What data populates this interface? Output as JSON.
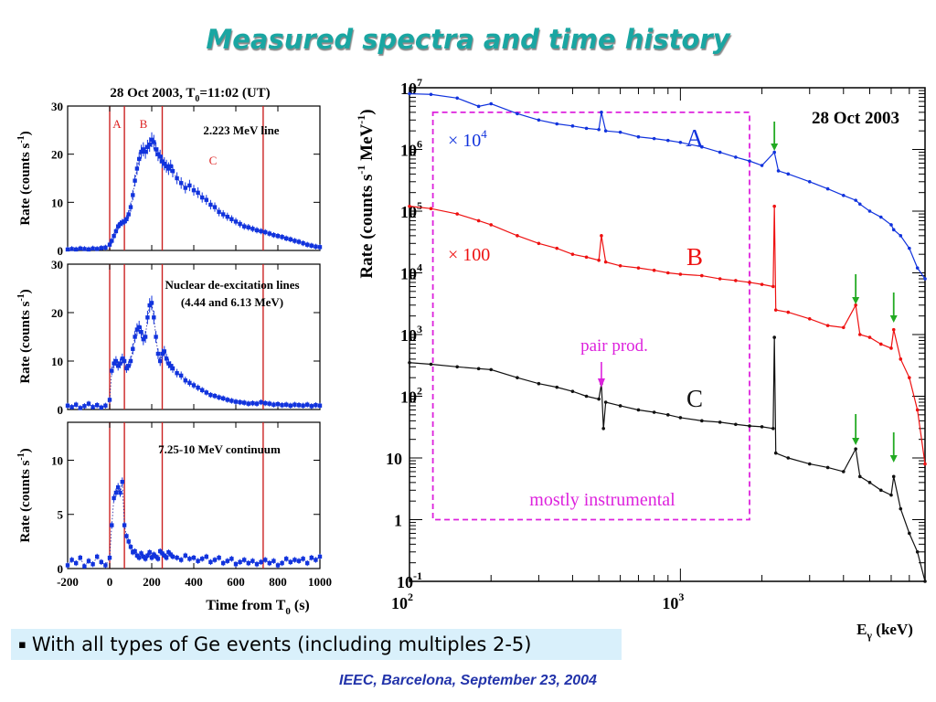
{
  "slide": {
    "title": "Measured spectra and time history",
    "bullet_marker": "▪",
    "bullet": "With all types of Ge events (including multiples 2-5)",
    "footer": "IEEC, Barcelona, September 23, 2004"
  },
  "colors": {
    "title": "#1aa6a2",
    "footer": "#2233aa",
    "bullet_bg": "#d9f0fb",
    "marker_line": "#cc2222",
    "pink": "#dd22dd",
    "arrow": "#22aa22",
    "series_a": "#1133dd",
    "series_b": "#ee1111",
    "series_c": "#111111"
  },
  "left_panels": {
    "header": "28 Oct 2003,  T",
    "header_sub": "0",
    "header_tail": "=11:02 (UT)",
    "xlabel": "Time from T",
    "xlabel_sub": "0",
    "xlabel_tail": " (s)",
    "ylabel": "Rate (counts s",
    "ylabel_sup": "-1",
    "ylabel_tail": ")",
    "xticks": [
      "-200",
      "0",
      "200",
      "400",
      "600",
      "800",
      "1000"
    ],
    "marker_times": [
      0,
      70,
      250,
      730
    ],
    "marker_labels": [
      "A",
      "B",
      "C"
    ]
  },
  "chart_data": [
    {
      "type": "scatter",
      "title": "2.223 MeV line",
      "xlim": [
        -200,
        1000
      ],
      "ylim": [
        0,
        30
      ],
      "yticks": [
        "0",
        "10",
        "20",
        "30"
      ],
      "x": [
        -200,
        -180,
        -160,
        -140,
        -120,
        -100,
        -80,
        -60,
        -40,
        -20,
        0,
        10,
        20,
        30,
        40,
        50,
        60,
        70,
        80,
        90,
        100,
        110,
        120,
        130,
        140,
        150,
        160,
        170,
        180,
        190,
        200,
        210,
        220,
        230,
        240,
        250,
        260,
        270,
        280,
        290,
        300,
        320,
        340,
        360,
        380,
        400,
        420,
        440,
        460,
        480,
        500,
        520,
        540,
        560,
        580,
        600,
        620,
        640,
        660,
        680,
        700,
        720,
        740,
        760,
        780,
        800,
        820,
        840,
        860,
        880,
        900,
        920,
        940,
        960,
        980,
        1000
      ],
      "y": [
        0.2,
        0.3,
        0.2,
        0.4,
        0.3,
        0.2,
        0.4,
        0.3,
        0.5,
        0.6,
        1.2,
        2.0,
        3.0,
        4.0,
        5.0,
        5.5,
        5.8,
        6.0,
        6.5,
        7.5,
        9.0,
        11.5,
        14.5,
        17.0,
        19.0,
        20.5,
        21.0,
        20.5,
        21.5,
        22.0,
        23.0,
        22.5,
        21.0,
        20.0,
        19.5,
        18.5,
        18.0,
        17.5,
        17.0,
        17.5,
        16.5,
        15.0,
        14.0,
        13.0,
        13.5,
        12.5,
        12.0,
        11.0,
        10.5,
        9.5,
        9.0,
        8.0,
        7.5,
        7.0,
        6.5,
        6.0,
        5.5,
        5.0,
        4.8,
        4.5,
        4.2,
        4.0,
        3.8,
        3.5,
        3.2,
        3.0,
        2.8,
        2.5,
        2.3,
        2.0,
        1.8,
        1.5,
        1.2,
        1.0,
        0.8,
        0.7
      ]
    },
    {
      "type": "scatter",
      "title": "Nuclear de-excitation lines",
      "subtitle": "(4.44 and 6.13 MeV)",
      "xlim": [
        -200,
        1000
      ],
      "ylim": [
        0,
        30
      ],
      "yticks": [
        "0",
        "10",
        "20",
        "30"
      ],
      "x": [
        -200,
        -180,
        -160,
        -140,
        -120,
        -100,
        -80,
        -60,
        -40,
        -20,
        0,
        10,
        20,
        30,
        40,
        50,
        60,
        70,
        80,
        90,
        100,
        110,
        120,
        130,
        140,
        150,
        160,
        170,
        180,
        190,
        200,
        210,
        220,
        230,
        240,
        250,
        260,
        270,
        280,
        290,
        300,
        320,
        340,
        360,
        380,
        400,
        420,
        440,
        460,
        480,
        500,
        520,
        540,
        560,
        580,
        600,
        620,
        640,
        660,
        680,
        700,
        720,
        740,
        760,
        780,
        800,
        820,
        840,
        860,
        880,
        900,
        920,
        940,
        960,
        980,
        1000
      ],
      "y": [
        0.8,
        0.5,
        1.0,
        0.3,
        0.7,
        1.2,
        0.5,
        0.9,
        0.4,
        0.8,
        2.0,
        8.0,
        9.5,
        10.0,
        9.0,
        9.5,
        10.5,
        10.0,
        8.5,
        9.0,
        10.0,
        12.5,
        15.0,
        16.5,
        17.0,
        16.0,
        14.5,
        15.0,
        19.0,
        21.5,
        22.0,
        19.0,
        15.0,
        11.5,
        10.0,
        11.5,
        12.0,
        10.5,
        9.5,
        9.0,
        8.5,
        7.5,
        7.0,
        6.0,
        5.5,
        5.0,
        4.5,
        4.0,
        3.5,
        3.0,
        2.8,
        2.5,
        2.3,
        2.0,
        1.8,
        1.6,
        1.5,
        1.4,
        1.2,
        1.3,
        1.2,
        1.5,
        1.3,
        1.2,
        1.0,
        1.1,
        0.9,
        1.0,
        0.8,
        1.0,
        0.9,
        0.8,
        1.0,
        0.7,
        0.9,
        0.8
      ]
    },
    {
      "type": "scatter",
      "title": "7.25-10 MeV continuum",
      "xlim": [
        -200,
        1000
      ],
      "ylim": [
        0,
        13.5
      ],
      "yticks": [
        "0",
        "5",
        "10"
      ],
      "x": [
        -200,
        -180,
        -160,
        -140,
        -120,
        -100,
        -80,
        -60,
        -40,
        -20,
        0,
        10,
        20,
        30,
        40,
        50,
        60,
        70,
        80,
        90,
        100,
        110,
        120,
        130,
        140,
        150,
        160,
        170,
        180,
        190,
        200,
        210,
        220,
        230,
        240,
        250,
        260,
        270,
        280,
        290,
        300,
        320,
        340,
        360,
        380,
        400,
        420,
        440,
        460,
        480,
        500,
        520,
        540,
        560,
        580,
        600,
        620,
        640,
        660,
        680,
        700,
        720,
        740,
        760,
        780,
        800,
        820,
        840,
        860,
        880,
        900,
        920,
        940,
        960,
        980,
        1000
      ],
      "y": [
        0.3,
        0.8,
        0.5,
        1.0,
        0.2,
        0.7,
        0.4,
        1.1,
        0.6,
        0.3,
        1.0,
        4.0,
        6.5,
        7.0,
        7.5,
        7.0,
        8.0,
        4.0,
        3.0,
        2.5,
        2.0,
        1.5,
        1.6,
        1.2,
        1.0,
        1.4,
        1.1,
        0.9,
        1.2,
        1.5,
        1.0,
        1.3,
        1.1,
        0.9,
        1.6,
        1.4,
        1.2,
        1.0,
        1.5,
        1.3,
        1.1,
        1.0,
        0.8,
        1.2,
        0.9,
        1.0,
        0.7,
        0.9,
        1.1,
        0.6,
        0.8,
        1.0,
        0.5,
        0.7,
        0.9,
        0.4,
        0.6,
        0.8,
        0.5,
        0.7,
        0.4,
        0.6,
        0.8,
        0.5,
        0.7,
        0.3,
        0.5,
        0.9,
        0.6,
        0.8,
        0.7,
        0.9,
        0.5,
        1.0,
        0.8,
        1.1
      ]
    },
    {
      "type": "line",
      "title": "28 Oct 2003",
      "xlabel": "E",
      "xlabel_sub": "γ",
      "xlabel_tail": " (keV)",
      "ylabel": "Rate (counts s",
      "ylabel_sup": "-1",
      "ylabel_mid": " MeV",
      "ylabel_sup2": "-1",
      "ylabel_tail": ")",
      "xscale": "log",
      "yscale": "log",
      "xlim": [
        100,
        8000
      ],
      "ylim": [
        0.1,
        10000000
      ],
      "xticks": [
        {
          "base": "10",
          "exp": "2",
          "value": 100
        },
        {
          "base": "10",
          "exp": "3",
          "value": 1000
        }
      ],
      "yticks": [
        {
          "base": "10",
          "exp": "-1",
          "value": 0.1
        },
        {
          "base": "1",
          "exp": "",
          "value": 1
        },
        {
          "base": "10",
          "exp": "",
          "value": 10
        },
        {
          "base": "10",
          "exp": "2",
          "value": 100
        },
        {
          "base": "10",
          "exp": "3",
          "value": 1000
        },
        {
          "base": "10",
          "exp": "4",
          "value": 10000
        },
        {
          "base": "10",
          "exp": "5",
          "value": 100000
        },
        {
          "base": "10",
          "exp": "6",
          "value": 1000000
        },
        {
          "base": "10",
          "exp": "7",
          "value": 10000000
        }
      ],
      "series": [
        {
          "name": "A",
          "scale_label": "× 10",
          "scale_exp": "4",
          "color": "#1133dd",
          "x": [
            100,
            120,
            150,
            180,
            200,
            250,
            300,
            350,
            400,
            450,
            500,
            511,
            530,
            600,
            700,
            800,
            900,
            1000,
            1200,
            1400,
            1600,
            1800,
            2000,
            2223,
            2300,
            2500,
            3000,
            3500,
            4000,
            4438,
            4600,
            5000,
            5500,
            6000,
            6130,
            6500,
            7000,
            7500,
            8000
          ],
          "y": [
            8000000,
            7800000,
            6800000,
            5000000,
            5500000,
            3800000,
            3000000,
            2600000,
            2400000,
            2200000,
            2100000,
            4000000,
            2000000,
            1900000,
            1600000,
            1500000,
            1400000,
            1300000,
            1100000,
            900000,
            750000,
            650000,
            550000,
            900000,
            450000,
            400000,
            300000,
            230000,
            180000,
            150000,
            130000,
            100000,
            80000,
            60000,
            50000,
            40000,
            25000,
            12000,
            8000
          ]
        },
        {
          "name": "B",
          "scale_label": "× 100",
          "color": "#ee1111",
          "x": [
            100,
            120,
            150,
            180,
            200,
            250,
            300,
            350,
            400,
            450,
            500,
            511,
            530,
            600,
            700,
            800,
            900,
            1000,
            1200,
            1400,
            1600,
            1800,
            2000,
            2200,
            2223,
            2250,
            2500,
            3000,
            3500,
            4000,
            4438,
            4600,
            5000,
            5500,
            6000,
            6130,
            6500,
            7000,
            7500,
            8000
          ],
          "y": [
            120000,
            110000,
            90000,
            70000,
            60000,
            40000,
            30000,
            25000,
            20000,
            18000,
            16000,
            40000,
            15000,
            13000,
            12000,
            11000,
            10000,
            9500,
            9000,
            8000,
            7500,
            7000,
            6500,
            6000,
            120000,
            2500,
            2300,
            1800,
            1400,
            1300,
            3000,
            1000,
            900,
            700,
            600,
            1200,
            400,
            200,
            60,
            8
          ]
        },
        {
          "name": "C",
          "color": "#111111",
          "x": [
            100,
            120,
            150,
            180,
            200,
            250,
            300,
            350,
            400,
            450,
            500,
            511,
            520,
            530,
            600,
            700,
            800,
            900,
            1000,
            1200,
            1400,
            1600,
            1800,
            2000,
            2200,
            2223,
            2250,
            2500,
            3000,
            3500,
            4000,
            4438,
            4600,
            5000,
            5500,
            6000,
            6130,
            6500,
            7000,
            7500,
            8000
          ],
          "y": [
            350,
            330,
            300,
            280,
            270,
            200,
            160,
            140,
            120,
            100,
            90,
            160,
            30,
            80,
            70,
            60,
            55,
            50,
            45,
            40,
            38,
            35,
            33,
            32,
            30,
            900,
            12,
            10,
            8,
            7,
            6,
            14,
            5,
            4,
            3,
            2.5,
            5,
            1.5,
            0.6,
            0.3,
            0.1
          ]
        }
      ],
      "annotations": [
        {
          "text": "pair prod.",
          "x": 511,
          "y": 1000
        },
        {
          "text": "mostly instrumental",
          "x": 400,
          "y": 2
        }
      ],
      "arrows_kev": [
        2223,
        4438,
        6130
      ]
    }
  ]
}
